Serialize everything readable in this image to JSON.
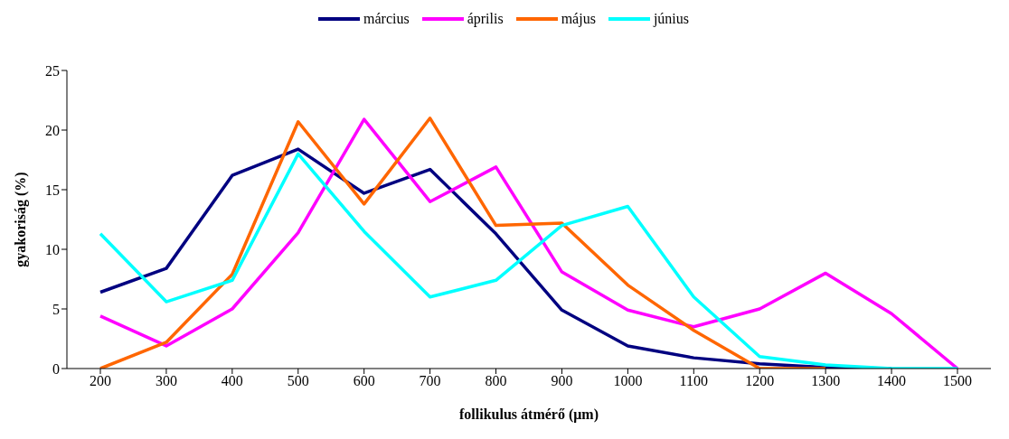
{
  "chart_data": {
    "type": "line",
    "xlabel": "follikulus átmérő (μm)",
    "ylabel": "gyakoriság (%)",
    "categories": [
      "200",
      "300",
      "400",
      "500",
      "600",
      "700",
      "800",
      "900",
      "1000",
      "1100",
      "1200",
      "1300",
      "1400",
      "1500"
    ],
    "series": [
      {
        "name": "március",
        "color": "#000080",
        "values": [
          6.4,
          8.4,
          16.2,
          18.4,
          14.7,
          16.7,
          11.3,
          4.9,
          1.9,
          0.9,
          0.4,
          0.1,
          0,
          null
        ]
      },
      {
        "name": "április",
        "color": "#ff00ff",
        "values": [
          4.4,
          1.9,
          5.0,
          11.4,
          20.9,
          14.0,
          16.9,
          8.1,
          4.9,
          3.5,
          5.0,
          8.0,
          4.6,
          0
        ]
      },
      {
        "name": "május",
        "color": "#ff6600",
        "values": [
          0,
          2.2,
          7.9,
          20.7,
          13.8,
          21.0,
          12.0,
          12.2,
          7.0,
          3.2,
          0,
          0,
          null,
          null
        ]
      },
      {
        "name": "június",
        "color": "#00ffff",
        "values": [
          11.3,
          5.6,
          7.4,
          18.0,
          11.5,
          6.0,
          7.4,
          12.0,
          13.6,
          6.0,
          1.0,
          0.3,
          0,
          0
        ]
      }
    ],
    "ylim": [
      0,
      25
    ],
    "yticks": [
      0,
      5,
      10,
      15,
      20,
      25
    ],
    "grid": false,
    "legend": "top",
    "marker": "none",
    "line_style": "solid"
  }
}
